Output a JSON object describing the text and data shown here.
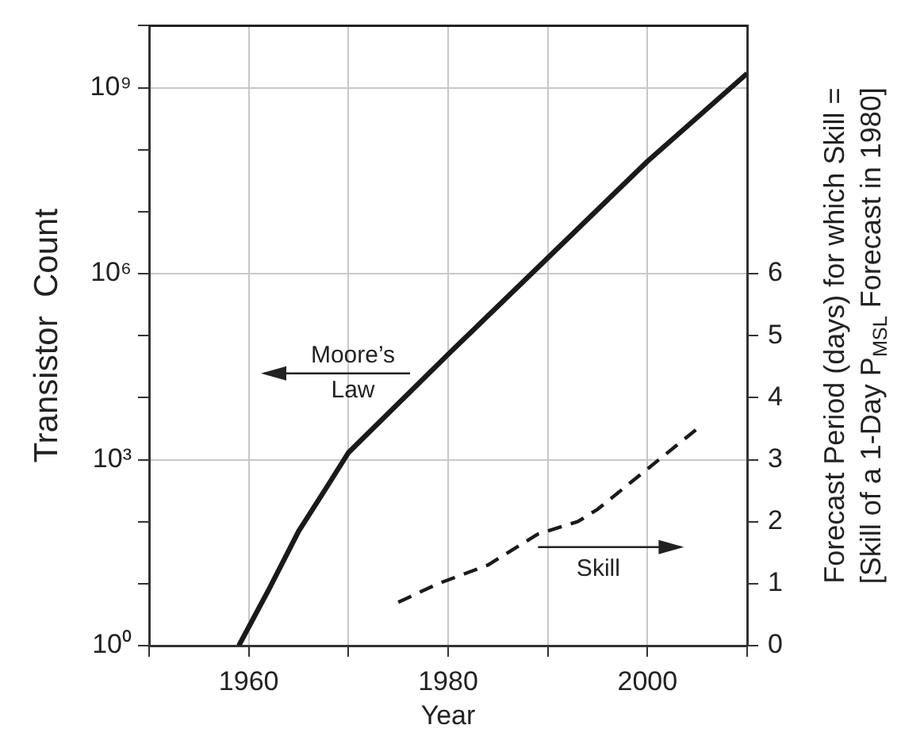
{
  "chart_data": {
    "type": "line",
    "xlabel": "Year",
    "ylabel": "Transistor  Count",
    "y2label": "Forecast Period (days) for which Skill =\n[Skill of a 1-Day P$_{MSL}$ Forecast in 1980]",
    "xlim": [
      1950,
      2010
    ],
    "xticks": [
      {
        "value": 1950,
        "label": null
      },
      1960,
      {
        "value": 1970,
        "label": null
      },
      1980,
      {
        "value": 1990,
        "label": null
      },
      2000,
      {
        "value": 2010,
        "label": null
      }
    ],
    "log": "y",
    "ylim": [
      1,
      10000000000
    ],
    "yticks": [
      {
        "value": 1,
        "label": "10⁰"
      },
      {
        "value": 10,
        "label": null
      },
      {
        "value": 100,
        "label": null
      },
      {
        "value": 1000,
        "label": "10³"
      },
      {
        "value": 10000,
        "label": null
      },
      {
        "value": 100000,
        "label": null
      },
      {
        "value": 1000000,
        "label": "10⁶"
      },
      {
        "value": 10000000,
        "label": null
      },
      {
        "value": 100000000,
        "label": null
      },
      {
        "value": 1000000000,
        "label": "10⁹"
      },
      {
        "value": 10000000000,
        "label": null
      }
    ],
    "y2lim": [
      0,
      10
    ],
    "y2ticks": [
      0,
      1,
      2,
      3,
      4,
      5,
      6
    ],
    "grid": true,
    "marker": "none",
    "series": [
      {
        "name": "Moore’s Law",
        "color": "#1a1a1a",
        "line_style": "solid",
        "x": [
          1959,
          1962,
          1965,
          1968,
          1970,
          1980,
          1990,
          2000,
          2010
        ],
        "values": [
          1,
          8,
          70,
          400,
          1300,
          50000,
          1800000,
          65000000,
          1700000000
        ]
      },
      {
        "name": "Skill",
        "color": "#1a1a1a",
        "line_style": "dashed",
        "axis": "y2",
        "x": [
          1975,
          1979,
          1984,
          1989,
          1993,
          1995,
          2000,
          2005
        ],
        "values": [
          0.7,
          1.0,
          1.3,
          1.8,
          2.0,
          2.2,
          2.85,
          3.5
        ]
      }
    ]
  }
}
